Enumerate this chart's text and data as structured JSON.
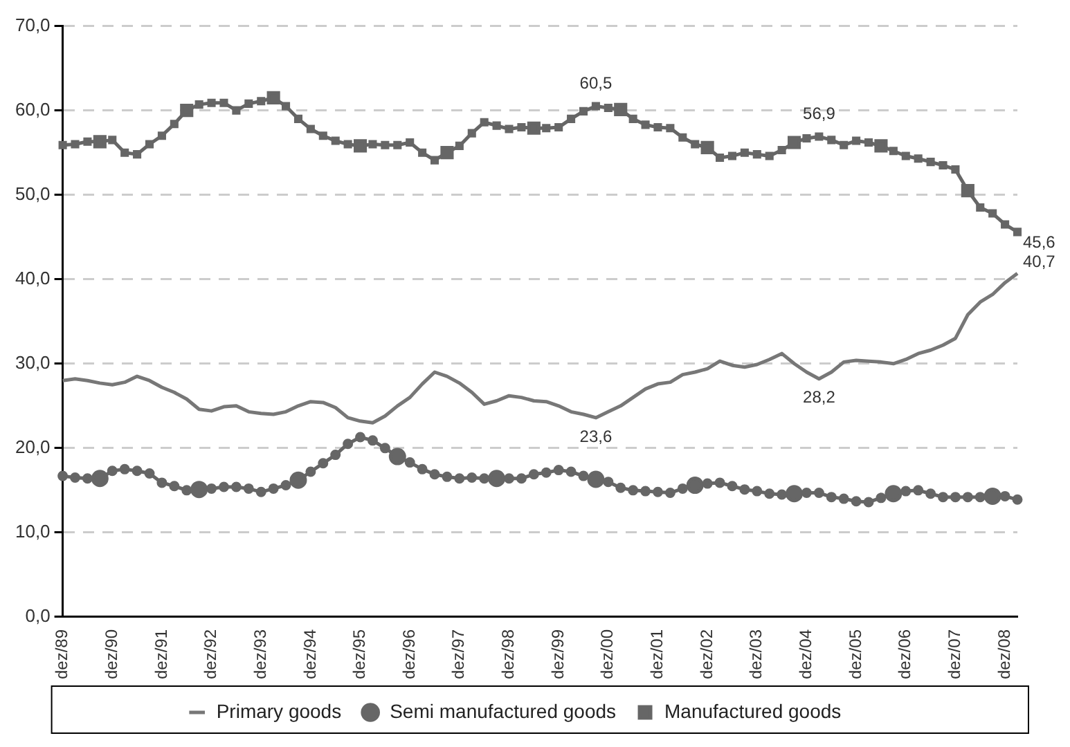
{
  "chart_data": {
    "type": "line",
    "categories": [
      "dez/89",
      null,
      null,
      null,
      "dez/90",
      null,
      null,
      null,
      "dez/91",
      null,
      null,
      null,
      "dez/92",
      null,
      null,
      null,
      "dez/93",
      null,
      null,
      null,
      "dez/94",
      null,
      null,
      null,
      "dez/95",
      null,
      null,
      null,
      "dez/96",
      null,
      null,
      null,
      "dez/97",
      null,
      null,
      null,
      "dez/98",
      null,
      null,
      null,
      "dez/99",
      null,
      null,
      null,
      "dez/00",
      null,
      null,
      null,
      "dez/01",
      null,
      null,
      null,
      "dez/02",
      null,
      null,
      null,
      "dez/03",
      null,
      null,
      null,
      "dez/04",
      null,
      null,
      null,
      "dez/05",
      null,
      null,
      null,
      "dez/06",
      null,
      null,
      null,
      "dez/07",
      null,
      null,
      null,
      "dez/08",
      null
    ],
    "series": [
      {
        "name": "Primary goods",
        "color": "#777777",
        "marker": "none",
        "values": [
          28.0,
          28.2,
          28.0,
          27.7,
          27.5,
          27.8,
          28.5,
          28.0,
          27.2,
          26.6,
          25.8,
          24.6,
          24.4,
          24.9,
          25.0,
          24.3,
          24.1,
          24.0,
          24.3,
          25.0,
          25.5,
          25.4,
          24.8,
          23.6,
          23.2,
          23.0,
          23.8,
          25.0,
          26.0,
          27.6,
          29.0,
          28.5,
          27.7,
          26.6,
          25.2,
          25.6,
          26.2,
          26.0,
          25.6,
          25.5,
          25.0,
          24.3,
          24.0,
          23.6,
          24.3,
          25.0,
          26.0,
          27.0,
          27.6,
          27.8,
          28.7,
          29.0,
          29.4,
          30.3,
          29.8,
          29.6,
          29.9,
          30.5,
          31.2,
          30.0,
          29.0,
          28.2,
          29.0,
          30.2,
          30.4,
          30.3,
          30.2,
          30.0,
          30.5,
          31.2,
          31.6,
          32.2,
          33.0,
          35.8,
          37.3,
          38.2,
          39.6,
          40.7
        ],
        "value_labels": [
          null,
          null,
          null,
          null,
          null,
          null,
          null,
          null,
          null,
          null,
          null,
          null,
          null,
          null,
          null,
          null,
          null,
          null,
          null,
          null,
          null,
          null,
          null,
          null,
          null,
          null,
          null,
          null,
          null,
          null,
          null,
          null,
          null,
          null,
          null,
          null,
          null,
          null,
          null,
          null,
          null,
          null,
          null,
          "23,6",
          null,
          null,
          null,
          null,
          null,
          null,
          null,
          null,
          null,
          null,
          null,
          null,
          null,
          null,
          null,
          null,
          null,
          "28,2",
          null,
          null,
          null,
          null,
          null,
          null,
          null,
          null,
          null,
          null,
          null,
          null,
          null,
          null,
          null,
          "40,7"
        ]
      },
      {
        "name": "Semi manufactured goods",
        "color": "#666666",
        "marker": "circle",
        "values": [
          16.7,
          16.5,
          16.4,
          16.4,
          17.3,
          17.5,
          17.3,
          17.0,
          15.9,
          15.5,
          15.0,
          15.1,
          15.2,
          15.4,
          15.4,
          15.2,
          14.8,
          15.2,
          15.6,
          16.2,
          17.2,
          18.2,
          19.2,
          20.5,
          21.3,
          20.9,
          20.0,
          19.0,
          18.3,
          17.5,
          16.9,
          16.6,
          16.4,
          16.5,
          16.4,
          16.4,
          16.4,
          16.4,
          16.9,
          17.1,
          17.4,
          17.2,
          16.7,
          16.3,
          16.0,
          15.3,
          15.0,
          14.9,
          14.8,
          14.7,
          15.2,
          15.6,
          15.8,
          15.9,
          15.5,
          15.1,
          14.9,
          14.6,
          14.5,
          14.6,
          14.7,
          14.7,
          14.2,
          14.0,
          13.7,
          13.6,
          14.1,
          14.6,
          14.9,
          15.0,
          14.6,
          14.2,
          14.2,
          14.2,
          14.2,
          14.3,
          14.3,
          13.9
        ]
      },
      {
        "name": "Manufactured goods",
        "color": "#666666",
        "marker": "square",
        "values": [
          55.9,
          56.0,
          56.3,
          56.3,
          56.5,
          55.0,
          54.8,
          56.0,
          57.0,
          58.4,
          60.0,
          60.7,
          60.9,
          60.9,
          60.0,
          60.8,
          61.1,
          61.5,
          60.5,
          59.0,
          57.8,
          57.0,
          56.4,
          56.0,
          55.8,
          56.0,
          55.9,
          55.9,
          56.2,
          55.0,
          54.1,
          55.0,
          55.8,
          57.3,
          58.6,
          58.2,
          57.8,
          58.0,
          57.9,
          57.9,
          58.0,
          59.0,
          59.9,
          60.5,
          60.3,
          60.1,
          59.0,
          58.3,
          58.0,
          57.9,
          56.8,
          56.0,
          55.6,
          54.4,
          54.6,
          55.0,
          54.8,
          54.6,
          55.3,
          56.2,
          56.7,
          56.9,
          56.5,
          55.9,
          56.4,
          56.2,
          55.8,
          55.2,
          54.6,
          54.3,
          53.9,
          53.5,
          53.0,
          50.5,
          48.5,
          47.8,
          46.5,
          45.6
        ],
        "value_labels": [
          null,
          null,
          null,
          null,
          null,
          null,
          null,
          null,
          null,
          null,
          null,
          null,
          null,
          null,
          null,
          null,
          null,
          null,
          null,
          null,
          null,
          null,
          null,
          null,
          null,
          null,
          null,
          null,
          null,
          null,
          null,
          null,
          null,
          null,
          null,
          null,
          null,
          null,
          null,
          null,
          null,
          null,
          null,
          "60,5",
          null,
          null,
          null,
          null,
          null,
          null,
          null,
          null,
          null,
          null,
          null,
          null,
          null,
          null,
          null,
          null,
          null,
          "56,9",
          null,
          null,
          null,
          null,
          null,
          null,
          null,
          null,
          null,
          null,
          null,
          null,
          null,
          null,
          null,
          "45,6"
        ]
      }
    ],
    "ylim": [
      0,
      70
    ],
    "yticks": [
      {
        "value": 0,
        "label": "0,0"
      },
      {
        "value": 10,
        "label": "10,0"
      },
      {
        "value": 20,
        "label": "20,0"
      },
      {
        "value": 30,
        "label": "30,0"
      },
      {
        "value": 40,
        "label": "40,0"
      },
      {
        "value": 50,
        "label": "50,0"
      },
      {
        "value": 60,
        "label": "60,0"
      },
      {
        "value": 70,
        "label": "70,0"
      }
    ],
    "grid": "y",
    "legend": "bottom",
    "line_style": "solid"
  }
}
